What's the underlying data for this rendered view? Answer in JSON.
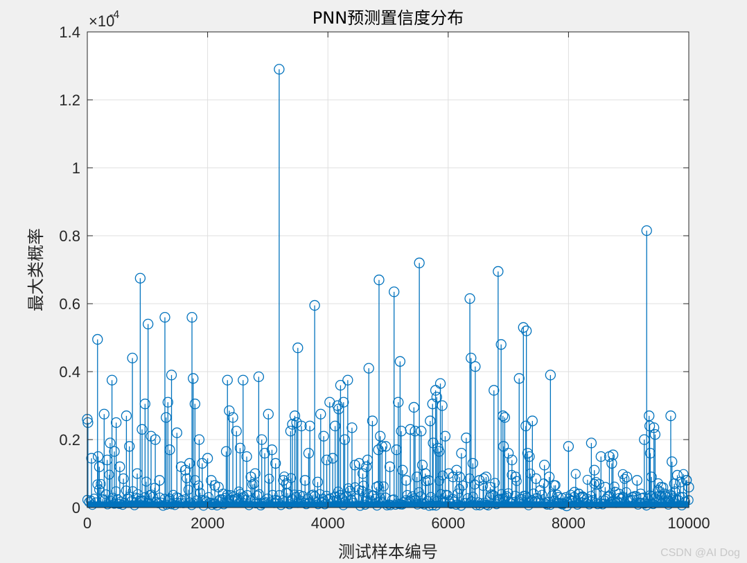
{
  "chart_data": {
    "type": "stem",
    "title": "PNN预测置信度分布",
    "xlabel": "测试样本编号",
    "ylabel": "最大类概率",
    "xlim": [
      0,
      10000
    ],
    "ylim": [
      0,
      1.4
    ],
    "y_exponent_label": "×10",
    "y_exponent": "-4",
    "x_ticks": [
      "0",
      "2000",
      "4000",
      "6000",
      "8000",
      "10000"
    ],
    "y_ticks": [
      "0",
      "0.2",
      "0.4",
      "0.6",
      "0.8",
      "1",
      "1.2",
      "1.4"
    ],
    "grid": true,
    "marker": "circle",
    "color": "#0072BD",
    "baseline_density": "dense stems of near-zero values (below ~0.05) span x = 0 to 10000",
    "series": [
      {
        "x": [
          0,
          10,
          70,
          170,
          180,
          200,
          280,
          330,
          380,
          410,
          450,
          480,
          540,
          600,
          650,
          700,
          750,
          830,
          880,
          910,
          960,
          1010,
          1060,
          1130,
          1200,
          1290,
          1310,
          1340,
          1370,
          1400,
          1490,
          1560,
          1630,
          1700,
          1740,
          1760,
          1790,
          1860,
          1910,
          2000,
          2060,
          2120,
          2180,
          2260,
          2310,
          2330,
          2360,
          2420,
          2480,
          2540,
          2590,
          2650,
          2720,
          2790,
          2850,
          2900,
          2950,
          3010,
          3070,
          3130,
          3190,
          3260,
          3310,
          3380,
          3410,
          3450,
          3480,
          3500,
          3560,
          3620,
          3680,
          3700,
          3780,
          3830,
          3880,
          3930,
          3980,
          4030,
          4080,
          4120,
          4160,
          4180,
          4210,
          4260,
          4280,
          4330,
          4400,
          4450,
          4520,
          4580,
          4640,
          4660,
          4680,
          4740,
          4810,
          4840,
          4850,
          4870,
          4900,
          4960,
          5030,
          5100,
          5140,
          5170,
          5200,
          5220,
          5240,
          5300,
          5370,
          5430,
          5450,
          5480,
          5520,
          5550,
          5570,
          5620,
          5670,
          5700,
          5740,
          5750,
          5790,
          5810,
          5830,
          5850,
          5870,
          5900,
          5950,
          6010,
          6080,
          6140,
          6190,
          6220,
          6300,
          6360,
          6380,
          6410,
          6450,
          6520,
          6590,
          6630,
          6700,
          6760,
          6830,
          6880,
          6910,
          6920,
          6940,
          7000,
          7060,
          7120,
          7180,
          7250,
          7290,
          7300,
          7320,
          7350,
          7400,
          7460,
          7530,
          7600,
          7680,
          7700,
          7760,
          7830,
          7900,
          7970,
          8000,
          8050,
          8100,
          8170,
          8240,
          8310,
          8380,
          8430,
          8460,
          8540,
          8610,
          8680,
          8720,
          8740,
          8780,
          8840,
          8900,
          8970,
          9060,
          9140,
          9200,
          9260,
          9300,
          9340,
          9350,
          9360,
          9380,
          9420,
          9440,
          9490,
          9540,
          9600,
          9660,
          9700,
          9720,
          9760,
          9810,
          9860,
          9900,
          9960,
          10000
        ],
        "y": [
          0.26,
          0.25,
          0.145,
          0.495,
          0.15,
          0.12,
          0.275,
          0.14,
          0.19,
          0.375,
          0.165,
          0.25,
          0.12,
          0.085,
          0.27,
          0.18,
          0.44,
          0.1,
          0.675,
          0.23,
          0.305,
          0.54,
          0.21,
          0.2,
          0.08,
          0.56,
          0.265,
          0.31,
          0.17,
          0.39,
          0.22,
          0.12,
          0.11,
          0.13,
          0.56,
          0.38,
          0.305,
          0.2,
          0.13,
          0.145,
          0.08,
          0.065,
          0.06,
          0.04,
          0.165,
          0.375,
          0.285,
          0.265,
          0.225,
          0.175,
          0.375,
          0.15,
          0.09,
          0.1,
          0.385,
          0.2,
          0.16,
          0.275,
          0.17,
          0.13,
          1.29,
          0.08,
          0.07,
          0.225,
          0.245,
          0.27,
          0.25,
          0.47,
          0.24,
          0.08,
          0.16,
          0.24,
          0.595,
          0.075,
          0.275,
          0.21,
          0.14,
          0.31,
          0.145,
          0.24,
          0.3,
          0.29,
          0.36,
          0.31,
          0.2,
          0.375,
          0.235,
          0.125,
          0.13,
          0.1,
          0.12,
          0.14,
          0.41,
          0.255,
          0.06,
          0.17,
          0.67,
          0.21,
          0.18,
          0.18,
          0.12,
          0.635,
          0.17,
          0.31,
          0.43,
          0.225,
          0.11,
          0.08,
          0.23,
          0.295,
          0.225,
          0.09,
          0.72,
          0.225,
          0.125,
          0.1,
          0.08,
          0.255,
          0.305,
          0.19,
          0.345,
          0.325,
          0.175,
          0.165,
          0.365,
          0.3,
          0.21,
          0.1,
          0.09,
          0.11,
          0.09,
          0.16,
          0.205,
          0.615,
          0.44,
          0.13,
          0.415,
          0.08,
          0.085,
          0.09,
          0.06,
          0.345,
          0.695,
          0.48,
          0.27,
          0.18,
          0.265,
          0.16,
          0.14,
          0.09,
          0.38,
          0.53,
          0.24,
          0.52,
          0.16,
          0.15,
          0.255,
          0.085,
          0.05,
          0.125,
          0.09,
          0.39,
          0.065,
          0.03,
          0.01,
          0.005,
          0.18,
          0.02,
          0.045,
          0.04,
          0.03,
          0.025,
          0.19,
          0.11,
          0.04,
          0.15,
          0.06,
          0.15,
          0.13,
          0.155,
          0.045,
          0.04,
          0.03,
          0.09,
          0.03,
          0.08,
          0.04,
          0.2,
          0.815,
          0.27,
          0.24,
          0.16,
          0.09,
          0.235,
          0.215,
          0.05,
          0.06,
          0.04,
          0.02,
          0.27,
          0.135,
          0.07,
          0.095,
          0.075,
          0.03,
          0.08,
          0.06
        ]
      }
    ]
  },
  "watermark": "CSDN @AI Dog"
}
